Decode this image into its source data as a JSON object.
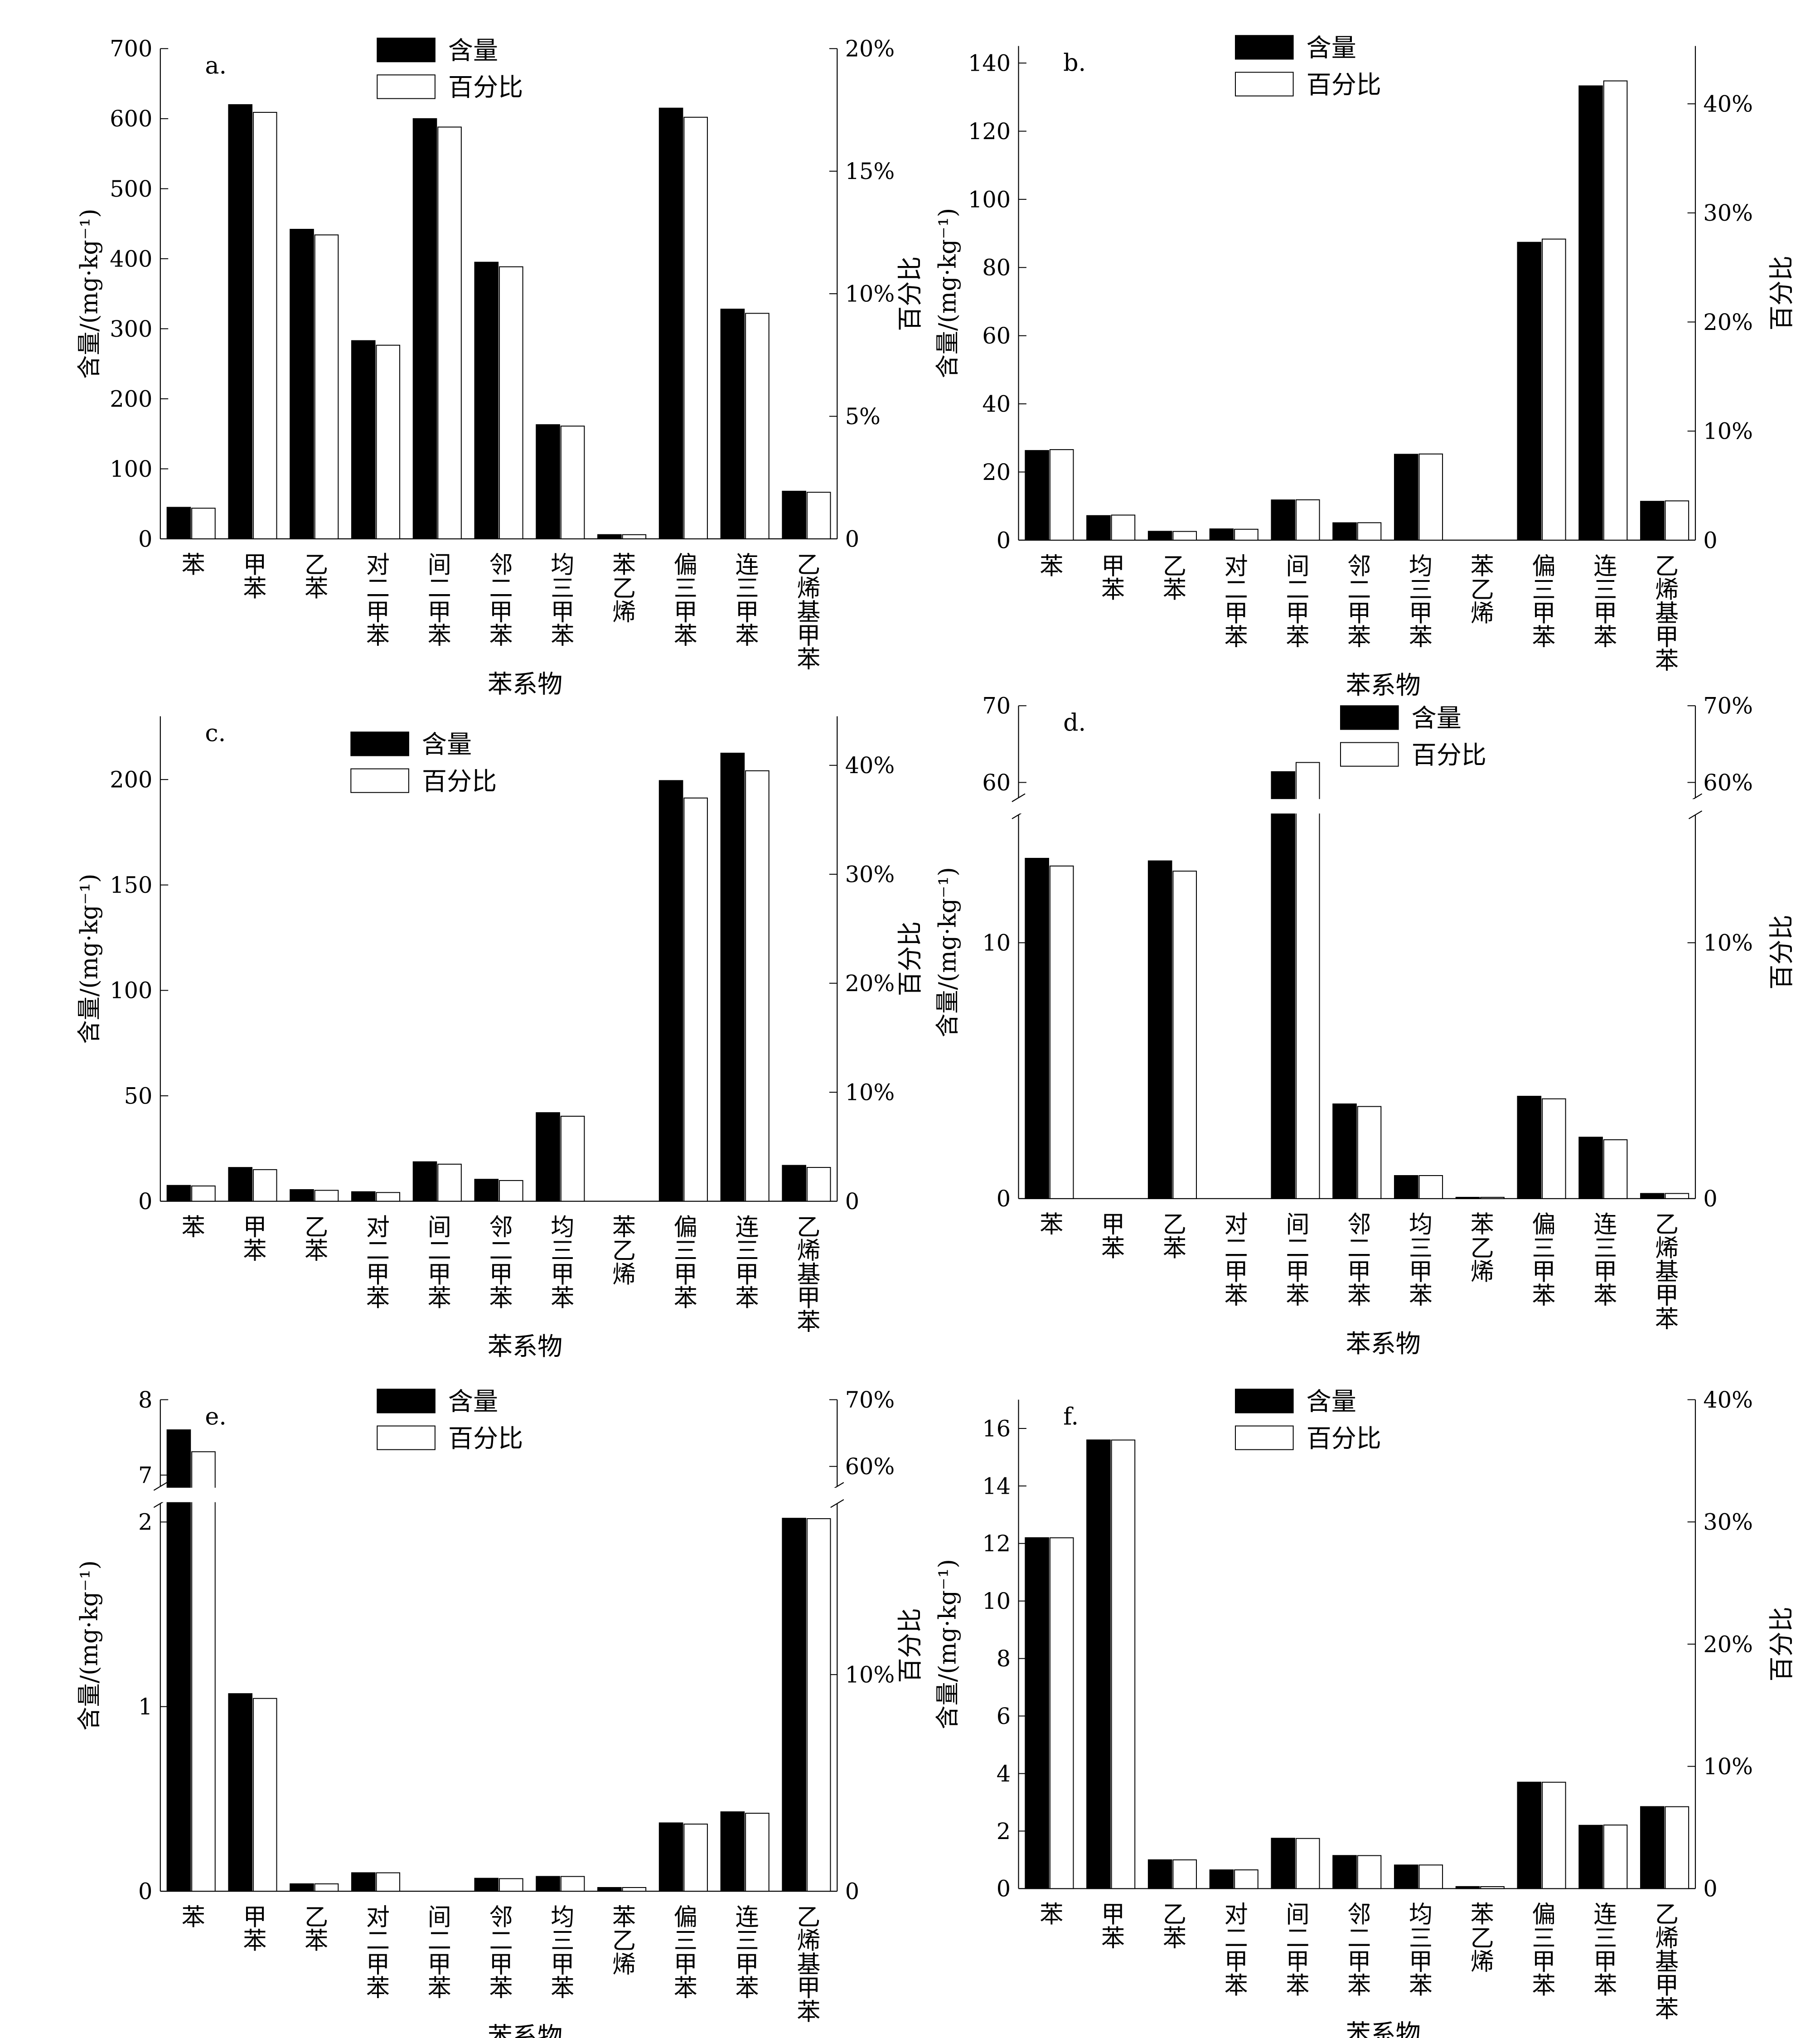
{
  "legend": {
    "content": "含量",
    "percent": "百分比"
  },
  "axis_labels": {
    "x": "苯系物",
    "y_left": "含量/(mg·kg⁻¹)",
    "y_right": "百分比"
  },
  "categories": [
    "苯",
    "甲苯",
    "乙苯",
    "对二甲苯",
    "间二甲苯",
    "邻二甲苯",
    "均三甲苯",
    "苯乙烯",
    "偏三甲苯",
    "连三甲苯",
    "乙烯基甲苯"
  ],
  "colors": {
    "content_bar": "#000000",
    "percent_bar": "#ffffff",
    "stroke": "#000000"
  },
  "chart_data": [
    {
      "type": "bar",
      "panel_label": "a.",
      "xlabel": "苯系物",
      "ylabel": "含量/(mg·kg⁻¹)",
      "y2label": "百分比",
      "ylim": [
        0,
        700
      ],
      "yticks": [
        0,
        100,
        200,
        300,
        400,
        500,
        600,
        700
      ],
      "y2lim": [
        0,
        20
      ],
      "y2ticks": [
        0,
        5,
        10,
        15,
        20
      ],
      "y2_unit": "%",
      "legend_position": "top-center",
      "series": [
        {
          "name": "含量",
          "values": [
            45,
            620,
            442,
            283,
            600,
            395,
            163,
            6,
            615,
            328,
            68
          ]
        },
        {
          "name": "百分比",
          "values": [
            1.25,
            17.4,
            12.4,
            7.9,
            16.8,
            11.1,
            4.6,
            0.17,
            17.2,
            9.2,
            1.9
          ]
        }
      ]
    },
    {
      "type": "bar",
      "panel_label": "b.",
      "xlabel": "苯系物",
      "ylabel": "含量/(mg·kg⁻¹)",
      "y2label": "百分比",
      "ylim": [
        0,
        145
      ],
      "yticks": [
        0,
        20,
        40,
        60,
        80,
        100,
        120,
        140
      ],
      "y2lim": [
        0,
        45.3
      ],
      "y2ticks": [
        0,
        10,
        20,
        30,
        40
      ],
      "y2_unit": "%",
      "legend_position": "top-center",
      "series": [
        {
          "name": "含量",
          "values": [
            26.3,
            7.2,
            2.6,
            3.3,
            11.8,
            5.1,
            25.2,
            0,
            87.4,
            133.3,
            11.4
          ]
        },
        {
          "name": "百分比",
          "values": [
            8.3,
            2.3,
            0.8,
            1.0,
            3.7,
            1.6,
            7.9,
            0,
            27.6,
            42.1,
            3.6
          ]
        }
      ]
    },
    {
      "type": "bar",
      "panel_label": "c.",
      "xlabel": "苯系物",
      "ylabel": "含量/(mg·kg⁻¹)",
      "y2label": "百分比",
      "ylim": [
        0,
        230
      ],
      "yticks": [
        0,
        50,
        100,
        150,
        200
      ],
      "y2lim": [
        0,
        44.5
      ],
      "y2ticks": [
        0,
        10,
        20,
        30,
        40
      ],
      "y2_unit": "%",
      "legend_position": "top-center",
      "series": [
        {
          "name": "含量",
          "values": [
            7.5,
            16,
            5.5,
            4.5,
            18.7,
            10.4,
            42,
            0,
            199.5,
            212.5,
            17
          ]
        },
        {
          "name": "百分比",
          "values": [
            1.4,
            2.9,
            1.0,
            0.8,
            3.4,
            1.9,
            7.8,
            0,
            37.0,
            39.5,
            3.1
          ]
        }
      ]
    },
    {
      "type": "bar",
      "panel_label": "d.",
      "xlabel": "苯系物",
      "ylabel": "含量/(mg·kg⁻¹)",
      "y2label": "百分比",
      "broken_axis": true,
      "ylim": [
        0,
        70
      ],
      "yticks": [
        0,
        10,
        60,
        70
      ],
      "y2lim": [
        0,
        70
      ],
      "y2ticks": [
        0,
        10,
        60,
        70
      ],
      "y2_unit": "%",
      "legend_position": "top-center",
      "series": [
        {
          "name": "含量",
          "values": [
            13.3,
            0,
            13.2,
            0,
            61.4,
            3.7,
            0.9,
            0.05,
            4.0,
            2.4,
            0.2
          ]
        },
        {
          "name": "百分比",
          "values": [
            13.0,
            0,
            12.8,
            0,
            62.6,
            3.6,
            0.9,
            0.05,
            3.9,
            2.3,
            0.2
          ]
        }
      ]
    },
    {
      "type": "bar",
      "panel_label": "e.",
      "xlabel": "苯系物",
      "ylabel": "含量/(mg·kg⁻¹)",
      "y2label": "百分比",
      "broken_axis": true,
      "ylim": [
        0,
        8
      ],
      "yticks": [
        0,
        1,
        2,
        7,
        8
      ],
      "y2lim": [
        0,
        70
      ],
      "y2ticks": [
        0,
        10,
        60,
        70
      ],
      "y2_unit": "%",
      "legend_position": "top-center",
      "series": [
        {
          "name": "含量",
          "values": [
            7.6,
            1.07,
            0.04,
            0.1,
            0,
            0.07,
            0.08,
            0.02,
            0.37,
            0.43,
            2.02
          ]
        },
        {
          "name": "百分比",
          "values": [
            62.2,
            8.9,
            0.34,
            0.85,
            0,
            0.58,
            0.68,
            0.17,
            3.1,
            3.6,
            17.2
          ]
        }
      ]
    },
    {
      "type": "bar",
      "panel_label": "f.",
      "xlabel": "苯系物",
      "ylabel": "含量/(mg·kg⁻¹)",
      "y2label": "百分比",
      "ylim": [
        0,
        17
      ],
      "yticks": [
        0,
        2,
        4,
        6,
        8,
        10,
        12,
        14,
        16
      ],
      "y2lim": [
        0,
        40
      ],
      "y2ticks": [
        0,
        10,
        20,
        30,
        40
      ],
      "y2_unit": "%",
      "legend_position": "top-center",
      "series": [
        {
          "name": "含量",
          "values": [
            12.2,
            15.6,
            1.0,
            0.65,
            1.75,
            1.15,
            0.82,
            0.07,
            3.7,
            2.2,
            2.85
          ]
        },
        {
          "name": "百分比",
          "values": [
            28.7,
            36.7,
            2.35,
            1.53,
            4.1,
            2.7,
            1.93,
            0.16,
            8.7,
            5.2,
            6.7
          ]
        }
      ]
    }
  ]
}
